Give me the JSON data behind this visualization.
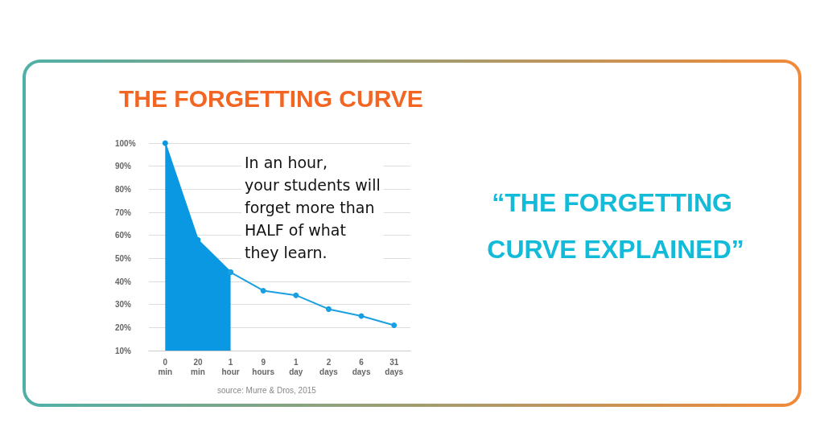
{
  "chart_data": {
    "type": "line",
    "title": "THE FORGETTING CURVE",
    "subtitle": "“THE FORGETTING CURVE EXPLAINED”",
    "categories": [
      "0\nmin",
      "20\nmin",
      "1\nhour",
      "9\nhours",
      "1\nday",
      "2\ndays",
      "6\ndays",
      "31\ndays"
    ],
    "series": [
      {
        "type": "area",
        "color": "#0a98e2",
        "values": [
          100,
          58,
          44,
          null,
          null,
          null,
          null,
          null
        ]
      },
      {
        "color": "#1a9fe0",
        "values": [
          null,
          null,
          44,
          36,
          34,
          28,
          25,
          21
        ]
      }
    ],
    "ylim": [
      10,
      100
    ],
    "yticks": [
      {
        "value": 10,
        "label": "10%"
      },
      {
        "value": 20,
        "label": "20%"
      },
      {
        "value": 30,
        "label": "30%"
      },
      {
        "value": 40,
        "label": "40%"
      },
      {
        "value": 50,
        "label": "50%"
      },
      {
        "value": 60,
        "label": "60%"
      },
      {
        "value": 70,
        "label": "70%"
      },
      {
        "value": 80,
        "label": "80%"
      },
      {
        "value": 90,
        "label": "90%"
      },
      {
        "value": 100,
        "label": "100%"
      }
    ],
    "grid": "y",
    "marker": "circle",
    "annotations": [
      "In an hour,\nyour students will\nforget more than\nHALF of what\nthey learn.",
      "source: Murre & Dros, 2015"
    ]
  }
}
